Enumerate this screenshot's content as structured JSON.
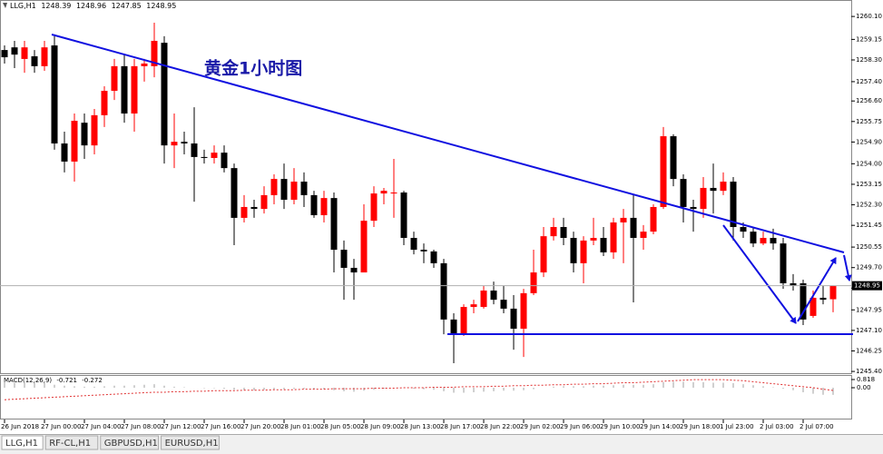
{
  "chart_data": {
    "type": "candlestick",
    "title": "LLG,H1",
    "annotation": "黄金1小时图",
    "up_color": "#ff0000",
    "down_color": "#000000",
    "categories": [
      "26 Jun 2018",
      null,
      null,
      null,
      "27 Jun 00:00",
      null,
      null,
      null,
      "27 Jun 04:00",
      null,
      null,
      null,
      "27 Jun 08:00",
      null,
      null,
      null,
      "27 Jun 12:00",
      null,
      null,
      null,
      "27 Jun 16:00",
      null,
      null,
      null,
      "27 Jun 20:00",
      null,
      null,
      null,
      "28 Jun 01:00",
      null,
      null,
      null,
      "28 Jun 05:00",
      null,
      null,
      null,
      "28 Jun 09:00",
      null,
      null,
      null,
      "28 Jun 13:00",
      null,
      null,
      null,
      "28 Jun 17:00",
      null,
      null,
      null,
      "28 Jun 22:00",
      null,
      null,
      null,
      "29 Jun 02:00",
      null,
      null,
      null,
      "29 Jun 06:00",
      null,
      null,
      null,
      "29 Jun 10:00",
      null,
      null,
      null,
      "29 Jun 14:00",
      null,
      null,
      null,
      "29 Jun 18:00",
      null,
      null,
      null,
      "1 Jul 23:00",
      null,
      null,
      null,
      "2 Jul 03:00",
      null,
      null,
      null,
      "2 Jul 07:00",
      null,
      null,
      null
    ],
    "open": [
      1258.71,
      1258.82,
      1258.34,
      1258.45,
      1258.04,
      1258.9,
      1254.84,
      1254.09,
      1255.7,
      1254.76,
      1256.01,
      1257.02,
      1258.04,
      1256.08,
      1258.04,
      1258.04,
      1259.01,
      1254.76,
      1254.91,
      1254.84,
      1254.28,
      1254.24,
      1254.46,
      1253.82,
      1251.76,
      1252.21,
      1252.13,
      1252.7,
      1253.37,
      1252.51,
      1253.26,
      1252.7,
      1251.87,
      1252.58,
      1250.44,
      1249.69,
      1249.5,
      1251.64,
      1252.77,
      1252.77,
      1252.81,
      1250.93,
      1250.44,
      1250.37,
      1249.88,
      1247.55,
      1246.94,
      1248.07,
      1248.07,
      1248.75,
      1248.37,
      1248.0,
      1247.17,
      1248.64,
      1249.5,
      1251.0,
      1251.38,
      1250.93,
      1249.88,
      1250.82,
      1250.93,
      1250.33,
      1251.57,
      1251.76,
      1250.93,
      1251.19,
      1252.21,
      1255.14,
      1253.37,
      1252.21,
      1252.13,
      1253.0,
      1252.88,
      1253.26,
      1251.38,
      1251.19,
      1250.7,
      1250.93,
      1250.7,
      1249.05,
      1249.05,
      1247.7,
      1248.45,
      1248.39
    ],
    "high": [
      1258.9,
      1259.09,
      1259.09,
      1258.71,
      1259.09,
      1259.28,
      1255.33,
      1256.08,
      1256.08,
      1256.27,
      1257.21,
      1258.34,
      1258.52,
      1258.34,
      1258.34,
      1259.84,
      1259.28,
      1256.08,
      1255.33,
      1256.34,
      1254.58,
      1254.76,
      1254.76,
      1254.01,
      1252.7,
      1252.51,
      1253.07,
      1253.56,
      1254.01,
      1253.82,
      1253.64,
      1252.88,
      1252.88,
      1252.81,
      1250.82,
      1250.06,
      1252.32,
      1253.07,
      1253.0,
      1254.2,
      1252.88,
      1251.19,
      1250.7,
      1250.44,
      1250.06,
      1247.81,
      1248.18,
      1248.37,
      1248.94,
      1249.12,
      1248.94,
      1248.56,
      1248.82,
      1250.44,
      1251.38,
      1251.76,
      1251.76,
      1251.19,
      1251.0,
      1251.76,
      1251.38,
      1251.76,
      1252.13,
      1252.7,
      1251.46,
      1252.32,
      1255.52,
      1255.22,
      1253.56,
      1252.51,
      1253.45,
      1254.01,
      1253.64,
      1253.45,
      1251.57,
      1251.38,
      1251.19,
      1251.31,
      1250.93,
      1249.43,
      1249.2,
      1248.75,
      1248.94,
      1248.96
    ],
    "low": [
      1258.15,
      1257.96,
      1257.77,
      1257.77,
      1257.85,
      1254.58,
      1253.64,
      1253.26,
      1254.2,
      1254.39,
      1255.52,
      1256.64,
      1255.7,
      1255.33,
      1257.4,
      1257.58,
      1254.01,
      1253.82,
      1254.39,
      1252.43,
      1254.01,
      1254.01,
      1253.64,
      1250.63,
      1251.57,
      1251.76,
      1251.94,
      1252.32,
      1252.13,
      1252.32,
      1252.21,
      1251.76,
      1251.57,
      1249.5,
      1248.37,
      1248.37,
      1249.5,
      1251.38,
      1252.32,
      1251.76,
      1250.63,
      1250.25,
      1249.88,
      1249.69,
      1246.94,
      1245.74,
      1246.87,
      1247.81,
      1248.0,
      1248.18,
      1247.81,
      1246.3,
      1246.0,
      1248.56,
      1249.31,
      1250.82,
      1250.63,
      1249.5,
      1249.05,
      1250.63,
      1250.18,
      1250.06,
      1249.88,
      1248.26,
      1250.44,
      1251.08,
      1252.13,
      1253.07,
      1251.57,
      1251.19,
      1251.76,
      1251.94,
      1252.7,
      1250.82,
      1250.93,
      1250.55,
      1250.63,
      1250.44,
      1248.82,
      1248.75,
      1247.32,
      1247.62,
      1248.18,
      1247.85
    ],
    "close": [
      1258.41,
      1258.52,
      1258.82,
      1258.04,
      1258.82,
      1254.84,
      1254.09,
      1255.78,
      1254.76,
      1256.01,
      1257.02,
      1258.04,
      1256.08,
      1258.04,
      1258.15,
      1259.09,
      1254.76,
      1254.91,
      1254.84,
      1254.28,
      1254.24,
      1254.46,
      1253.82,
      1251.76,
      1252.21,
      1252.13,
      1252.7,
      1253.37,
      1252.51,
      1253.26,
      1252.7,
      1251.87,
      1252.58,
      1250.44,
      1249.69,
      1249.5,
      1251.64,
      1252.77,
      1252.88,
      1252.81,
      1250.93,
      1250.44,
      1250.37,
      1249.88,
      1247.55,
      1246.94,
      1248.07,
      1248.18,
      1248.75,
      1248.37,
      1248.0,
      1247.17,
      1248.64,
      1249.5,
      1251.0,
      1251.38,
      1250.93,
      1249.88,
      1250.82,
      1250.93,
      1250.33,
      1251.57,
      1251.76,
      1250.93,
      1251.19,
      1252.21,
      1255.14,
      1253.37,
      1252.21,
      1252.13,
      1253.0,
      1252.88,
      1253.26,
      1251.38,
      1251.19,
      1250.7,
      1250.93,
      1250.7,
      1249.05,
      1248.94,
      1247.55,
      1248.45,
      1248.37,
      1248.95
    ],
    "ylim": [
      1245.29,
      1260.33
    ],
    "yticks": [
      {
        "value": 1260.1,
        "label": "1260.10"
      },
      1259.15,
      {
        "value": 1258.3,
        "label": "1258.30"
      },
      {
        "value": 1257.4,
        "label": "1257.40"
      },
      {
        "value": 1256.6,
        "label": "1256.60"
      },
      1255.75,
      {
        "value": 1254.9,
        "label": "1254.90"
      },
      {
        "value": 1254,
        "label": "1254.00"
      },
      1253.15,
      {
        "value": 1252.3,
        "label": "1252.30"
      },
      1251.45,
      1250.55,
      {
        "value": 1249.7,
        "label": "1249.70"
      },
      1248.85,
      1247.95,
      {
        "value": 1247.1,
        "label": "1247.10"
      },
      1246.25,
      {
        "value": 1245.4,
        "label": "1245.40"
      }
    ],
    "grid": false,
    "macd": {
      "label": "MACD(12,26,9)",
      "histogram_color": "#a0a0a0",
      "signal_color": "#e03030",
      "histogram": [
        0.55,
        0.5,
        0.5,
        0.45,
        0.45,
        0.3,
        0.2,
        0.15,
        0.1,
        0.1,
        0.15,
        0.2,
        0.2,
        0.25,
        0.3,
        0.35,
        0.2,
        0.1,
        0.05,
        0.0,
        -0.05,
        -0.05,
        -0.1,
        -0.2,
        -0.25,
        -0.25,
        -0.2,
        -0.15,
        -0.15,
        -0.1,
        -0.1,
        -0.15,
        -0.15,
        -0.25,
        -0.35,
        -0.4,
        -0.3,
        -0.2,
        -0.1,
        -0.05,
        -0.05,
        -0.1,
        -0.15,
        -0.2,
        -0.35,
        -0.5,
        -0.5,
        -0.45,
        -0.4,
        -0.35,
        -0.3,
        -0.3,
        -0.25,
        -0.15,
        0.0,
        0.1,
        0.15,
        0.15,
        0.15,
        0.2,
        0.2,
        0.25,
        0.3,
        0.3,
        0.3,
        0.35,
        0.55,
        0.6,
        0.6,
        0.55,
        0.55,
        0.5,
        0.5,
        0.45,
        0.35,
        0.25,
        0.15,
        0.05,
        -0.1,
        -0.25,
        -0.45,
        -0.6,
        -0.7,
        -0.721
      ],
      "signal": [
        -1.2,
        -1.15,
        -1.1,
        -1.05,
        -1.0,
        -0.95,
        -0.9,
        -0.85,
        -0.8,
        -0.75,
        -0.7,
        -0.65,
        -0.6,
        -0.55,
        -0.5,
        -0.45,
        -0.45,
        -0.4,
        -0.4,
        -0.35,
        -0.35,
        -0.3,
        -0.3,
        -0.3,
        -0.25,
        -0.25,
        -0.25,
        -0.2,
        -0.2,
        -0.2,
        -0.15,
        -0.15,
        -0.15,
        -0.1,
        -0.1,
        -0.1,
        -0.1,
        -0.05,
        -0.05,
        -0.05,
        0,
        0,
        0,
        0.05,
        0.05,
        0.05,
        0.1,
        0.1,
        0.1,
        0.15,
        0.15,
        0.2,
        0.2,
        0.25,
        0.25,
        0.3,
        0.3,
        0.35,
        0.35,
        0.4,
        0.4,
        0.45,
        0.5,
        0.5,
        0.55,
        0.6,
        0.65,
        0.7,
        0.75,
        0.8,
        0.8,
        0.8,
        0.8,
        0.75,
        0.7,
        0.6,
        0.5,
        0.4,
        0.3,
        0.2,
        0.1,
        0.0,
        -0.15,
        -0.272
      ],
      "ylim": [
        -3.18,
        1.18
      ],
      "yticks": [
        0.818,
        {
          "value": 0,
          "label": "0.00"
        }
      ]
    }
  },
  "tabs": [
    "LLG,H1",
    "RF-CL,H1",
    "GBPUSD,H1",
    "EURUSD,H1"
  ]
}
